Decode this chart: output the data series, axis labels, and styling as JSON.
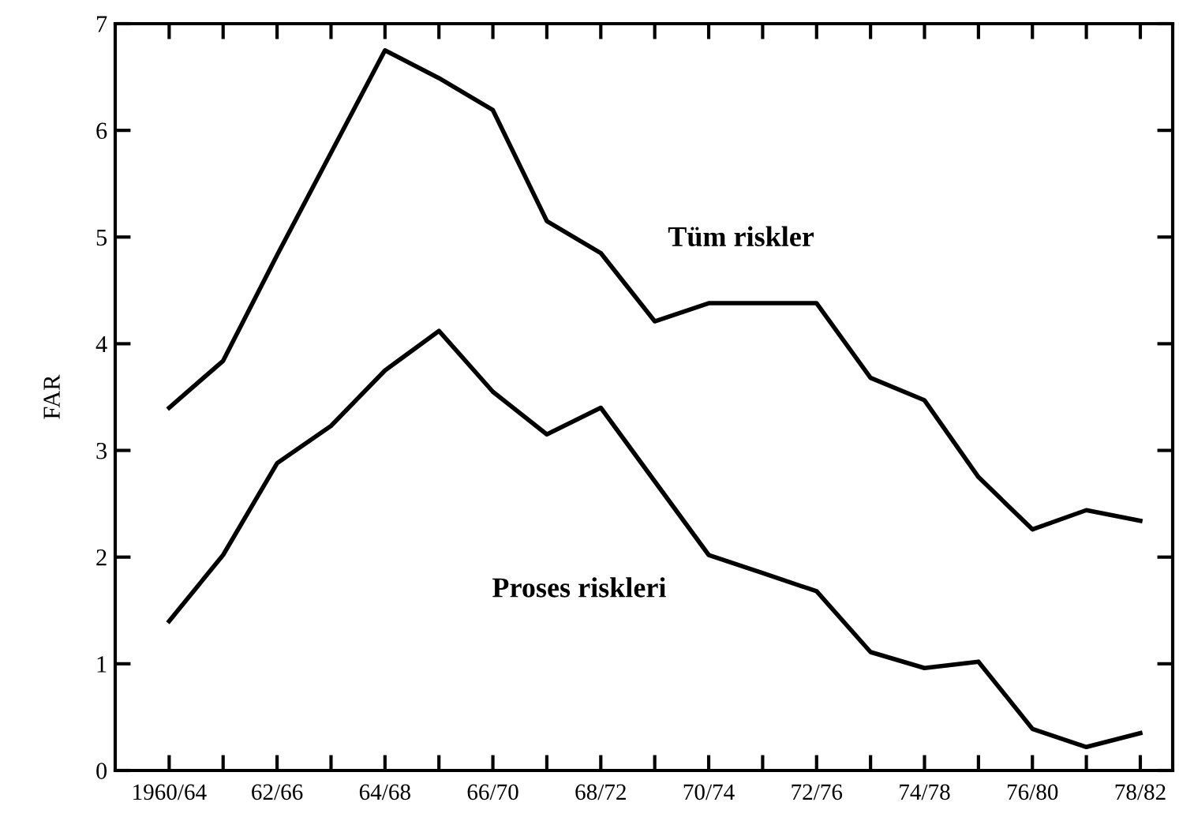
{
  "chart_data": {
    "type": "line",
    "ylabel": "FAR",
    "categories": [
      "1960/64",
      null,
      "62/66",
      null,
      "64/68",
      null,
      "66/70",
      null,
      "68/72",
      null,
      "70/74",
      null,
      "72/76",
      null,
      "74/78",
      null,
      "76/80",
      null,
      "78/82"
    ],
    "series": [
      {
        "name": "Tüm riskler",
        "color": "#000000",
        "values": [
          3.4,
          3.84,
          4.83,
          5.79,
          6.75,
          6.49,
          6.19,
          5.15,
          4.85,
          4.21,
          4.38,
          4.38,
          4.38,
          3.68,
          3.47,
          2.75,
          2.26,
          2.44,
          2.34
        ]
      },
      {
        "name": "Proses riskleri",
        "color": "#000000",
        "values": [
          1.4,
          2.02,
          2.88,
          3.23,
          3.75,
          4.12,
          3.55,
          3.15,
          3.4,
          2.71,
          2.02,
          1.85,
          1.68,
          1.11,
          0.96,
          1.02,
          0.39,
          0.22,
          0.35
        ]
      }
    ],
    "ylim": [
      0,
      7
    ],
    "yticks": [
      0,
      1,
      2,
      3,
      4,
      5,
      6,
      7
    ],
    "grid": false,
    "legend": false,
    "marker": "none",
    "line_style": "solid"
  }
}
